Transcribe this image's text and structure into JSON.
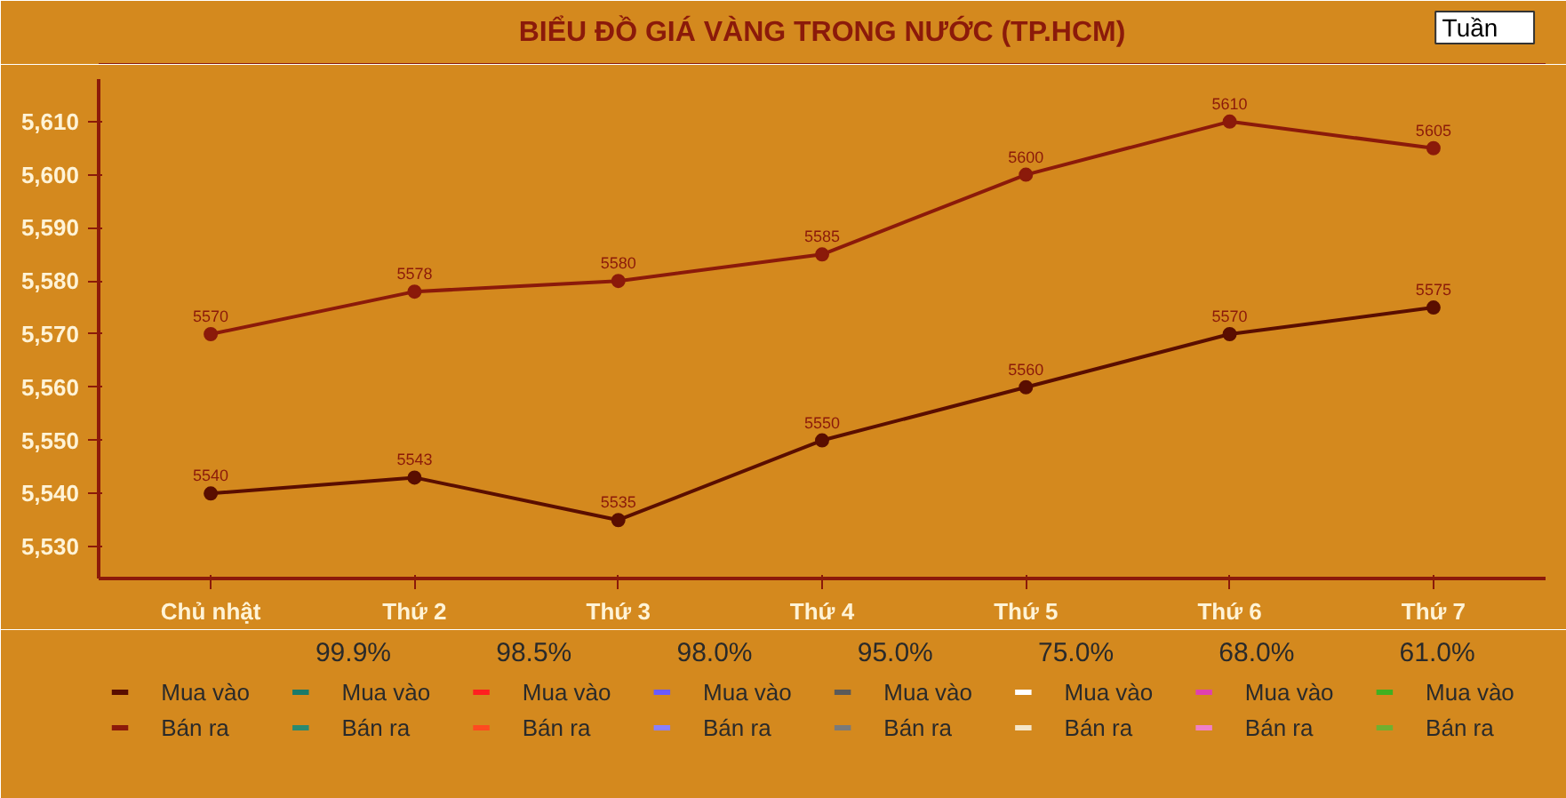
{
  "chart_data": {
    "type": "line",
    "title": "BIỂU ĐỒ GIÁ VÀNG TRONG NƯỚC (TP.HCM)",
    "categories": [
      "Chủ nhật",
      "Thứ 2",
      "Thứ 3",
      "Thứ 4",
      "Thứ 5",
      "Thứ 6",
      "Thứ 7"
    ],
    "series": [
      {
        "name": "Mua vào",
        "color": "#5a0e00",
        "values": [
          5540,
          5543,
          5535,
          5550,
          5560,
          5570,
          5575
        ]
      },
      {
        "name": "Bán ra",
        "color": "#8b1a0a",
        "values": [
          5570,
          5578,
          5580,
          5585,
          5600,
          5610,
          5605
        ]
      },
      {
        "name": "Mua vào",
        "color": "#1a7a6a",
        "values": [
          null,
          null,
          null,
          null,
          null,
          null,
          null
        ]
      },
      {
        "name": "Bán ra",
        "color": "#2a8a70",
        "values": [
          null,
          null,
          null,
          null,
          null,
          null,
          null
        ]
      },
      {
        "name": "Mua vào",
        "color": "#ff2020",
        "values": [
          null,
          null,
          null,
          null,
          null,
          null,
          null
        ]
      },
      {
        "name": "Bán ra",
        "color": "#ff4a20",
        "values": [
          null,
          null,
          null,
          null,
          null,
          null,
          null
        ]
      },
      {
        "name": "Mua vào",
        "color": "#6a5aff",
        "values": [
          null,
          null,
          null,
          null,
          null,
          null,
          null
        ]
      },
      {
        "name": "Bán ra",
        "color": "#8a80ff",
        "values": [
          null,
          null,
          null,
          null,
          null,
          null,
          null
        ]
      },
      {
        "name": "Mua vào",
        "color": "#5a5a5a",
        "values": [
          null,
          null,
          null,
          null,
          null,
          null,
          null
        ]
      },
      {
        "name": "Bán ra",
        "color": "#7a7a7a",
        "values": [
          null,
          null,
          null,
          null,
          null,
          null,
          null
        ]
      },
      {
        "name": "Mua vào",
        "color": "#ffffff",
        "values": [
          null,
          null,
          null,
          null,
          null,
          null,
          null
        ]
      },
      {
        "name": "Bán ra",
        "color": "#f5e6c8",
        "values": [
          null,
          null,
          null,
          null,
          null,
          null,
          null
        ]
      },
      {
        "name": "Mua vào",
        "color": "#e040b0",
        "values": [
          null,
          null,
          null,
          null,
          null,
          null,
          null
        ]
      },
      {
        "name": "Bán ra",
        "color": "#f080c8",
        "values": [
          null,
          null,
          null,
          null,
          null,
          null,
          null
        ]
      },
      {
        "name": "Mua vào",
        "color": "#40b020",
        "values": [
          null,
          null,
          null,
          null,
          null,
          null,
          null
        ]
      },
      {
        "name": "Bán ra",
        "color": "#70b030",
        "values": [
          null,
          null,
          null,
          null,
          null,
          null,
          null
        ]
      }
    ],
    "ylim": [
      5524,
      5618
    ],
    "yticks": [
      {
        "value": 5530,
        "label": "5,530"
      },
      {
        "value": 5540,
        "label": "5,540"
      },
      {
        "value": 5550,
        "label": "5,550"
      },
      {
        "value": 5560,
        "label": "5,560"
      },
      {
        "value": 5570,
        "label": "5,570"
      },
      {
        "value": 5580,
        "label": "5,580"
      },
      {
        "value": 5590,
        "label": "5,590"
      },
      {
        "value": 5600,
        "label": "5,600"
      },
      {
        "value": 5610,
        "label": "5,610"
      }
    ],
    "grid": false,
    "marker": "circle",
    "line_style": "solid",
    "data_labels": true,
    "legend": "bottom",
    "annotations": [
      "Tuần",
      "99.9%",
      "98.5%",
      "98.0%",
      "95.0%",
      "75.0%",
      "68.0%",
      "61.0%"
    ]
  }
}
